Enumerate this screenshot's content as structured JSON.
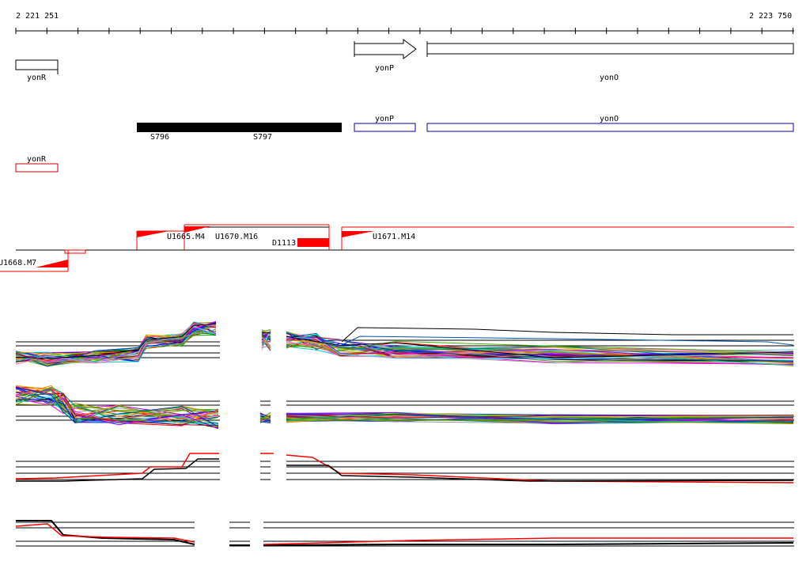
{
  "ruler": {
    "start_label": "2 221 251",
    "end_label": "2 223 750"
  },
  "annotation_genes": {
    "yonR": "yonR",
    "yonP": "yonP",
    "yonO": "yonO"
  },
  "bsub_genes": {
    "yonP": "yonP",
    "yonO": "yonO"
  },
  "other_strand_gene": {
    "yonR": "yonR"
  },
  "regulatory_segments": {
    "s796": "S796",
    "s797": "S797"
  },
  "transcription_units": {
    "u1665": "U1665.M4",
    "u1670": "U1670.M16",
    "d1113": "D1113",
    "u1671": "U1671.M14",
    "u1668": "U1668.M7"
  },
  "colors": {
    "forward_feature": "#000000",
    "bsub_feature": "#0000aa",
    "reverse_feature": "#cc0000",
    "tu_marker": "#ff0000"
  }
}
